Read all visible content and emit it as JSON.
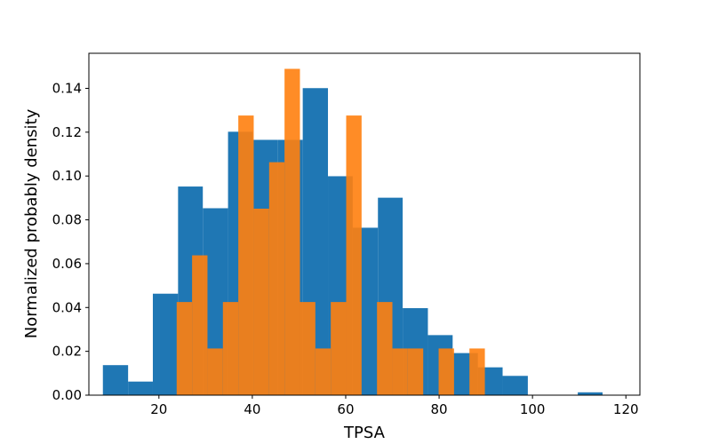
{
  "chart_data": {
    "type": "histogram",
    "title": "",
    "xlabel": "TPSA",
    "ylabel": "Normalized probably density",
    "xlim": [
      5,
      123
    ],
    "ylim": [
      0,
      0.156
    ],
    "xticks": [
      20,
      40,
      60,
      80,
      100,
      120
    ],
    "yticks": [
      0.0,
      0.02,
      0.04,
      0.06,
      0.08,
      0.1,
      0.12,
      0.14
    ],
    "series": [
      {
        "name": "blue",
        "color": "#1f77b4",
        "alpha": 1.0,
        "bins": [
          {
            "x0": 8.0,
            "x1": 13.4,
            "value": 0.0137
          },
          {
            "x0": 13.4,
            "x1": 18.7,
            "value": 0.0062
          },
          {
            "x0": 18.7,
            "x1": 24.1,
            "value": 0.0463
          },
          {
            "x0": 24.1,
            "x1": 29.4,
            "value": 0.0952
          },
          {
            "x0": 29.4,
            "x1": 34.8,
            "value": 0.0853
          },
          {
            "x0": 34.8,
            "x1": 40.1,
            "value": 0.1202
          },
          {
            "x0": 40.1,
            "x1": 45.5,
            "value": 0.1165
          },
          {
            "x0": 45.5,
            "x1": 50.8,
            "value": 0.1165
          },
          {
            "x0": 50.8,
            "x1": 56.2,
            "value": 0.1401
          },
          {
            "x0": 56.2,
            "x1": 61.5,
            "value": 0.0999
          },
          {
            "x0": 61.5,
            "x1": 66.9,
            "value": 0.0764
          },
          {
            "x0": 66.9,
            "x1": 72.2,
            "value": 0.0901
          },
          {
            "x0": 72.2,
            "x1": 77.6,
            "value": 0.0397
          },
          {
            "x0": 77.6,
            "x1": 82.9,
            "value": 0.0274
          },
          {
            "x0": 82.9,
            "x1": 88.3,
            "value": 0.0192
          },
          {
            "x0": 88.3,
            "x1": 93.6,
            "value": 0.0127
          },
          {
            "x0": 93.6,
            "x1": 99.0,
            "value": 0.0088
          },
          {
            "x0": 99.0,
            "x1": 104.3,
            "value": 0.0
          },
          {
            "x0": 104.3,
            "x1": 109.7,
            "value": 0.0
          },
          {
            "x0": 109.7,
            "x1": 115.0,
            "value": 0.0013
          }
        ]
      },
      {
        "name": "orange",
        "color": "#ff7f0e",
        "alpha": 0.9,
        "bins": [
          {
            "x0": 23.8,
            "x1": 27.1,
            "value": 0.0425
          },
          {
            "x0": 27.1,
            "x1": 30.4,
            "value": 0.0638
          },
          {
            "x0": 30.4,
            "x1": 33.7,
            "value": 0.0213
          },
          {
            "x0": 33.7,
            "x1": 37.0,
            "value": 0.0425
          },
          {
            "x0": 37.0,
            "x1": 40.3,
            "value": 0.1276
          },
          {
            "x0": 40.3,
            "x1": 43.6,
            "value": 0.0851
          },
          {
            "x0": 43.6,
            "x1": 46.9,
            "value": 0.1063
          },
          {
            "x0": 46.9,
            "x1": 50.2,
            "value": 0.1489
          },
          {
            "x0": 50.2,
            "x1": 53.5,
            "value": 0.0425
          },
          {
            "x0": 53.5,
            "x1": 56.8,
            "value": 0.0213
          },
          {
            "x0": 56.8,
            "x1": 60.1,
            "value": 0.0425
          },
          {
            "x0": 60.1,
            "x1": 63.4,
            "value": 0.1276
          },
          {
            "x0": 63.4,
            "x1": 66.7,
            "value": 0.0
          },
          {
            "x0": 66.7,
            "x1": 70.0,
            "value": 0.0425
          },
          {
            "x0": 70.0,
            "x1": 73.3,
            "value": 0.0213
          },
          {
            "x0": 73.3,
            "x1": 76.6,
            "value": 0.0213
          },
          {
            "x0": 76.6,
            "x1": 79.9,
            "value": 0.0
          },
          {
            "x0": 79.9,
            "x1": 83.2,
            "value": 0.0213
          },
          {
            "x0": 83.2,
            "x1": 86.5,
            "value": 0.0
          },
          {
            "x0": 86.5,
            "x1": 89.8,
            "value": 0.0213
          }
        ]
      }
    ]
  }
}
